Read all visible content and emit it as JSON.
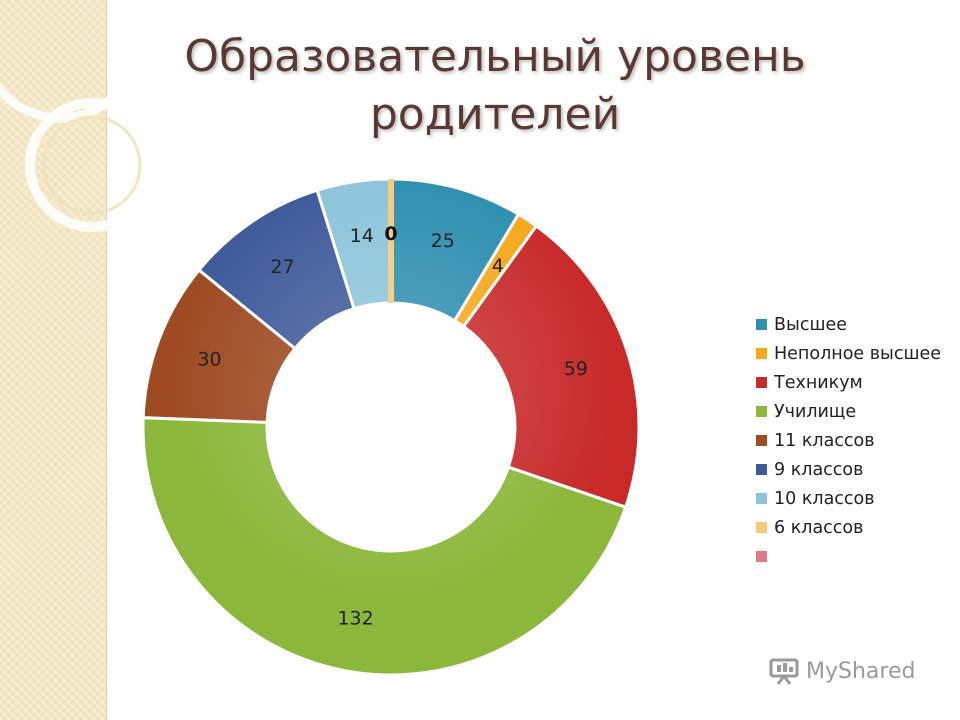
{
  "page": {
    "title_lines": [
      "Образовательный уровень",
      "родителей"
    ]
  },
  "chart_data": {
    "type": "pie",
    "donut": true,
    "title": "Образовательный уровень родителей",
    "categories": [
      "Высшее",
      "Неполное высшее",
      "Техникум",
      "Училище",
      "11 классов",
      "9 классов",
      "10 классов",
      "6 классов",
      ""
    ],
    "values": [
      25,
      4,
      59,
      132,
      30,
      27,
      14,
      0,
      null
    ],
    "data_labels": [
      "25",
      "4",
      "59",
      "132",
      "30",
      "27",
      "14",
      "0",
      ""
    ],
    "colors": [
      "#2e8fb0",
      "#f6a81c",
      "#c82a2a",
      "#8bb73a",
      "#9e4a22",
      "#3e5a9a",
      "#8cc4da",
      "#f7c97b",
      "#e07a84"
    ],
    "legend_position": "right"
  },
  "watermark": {
    "text": "MyShared"
  }
}
